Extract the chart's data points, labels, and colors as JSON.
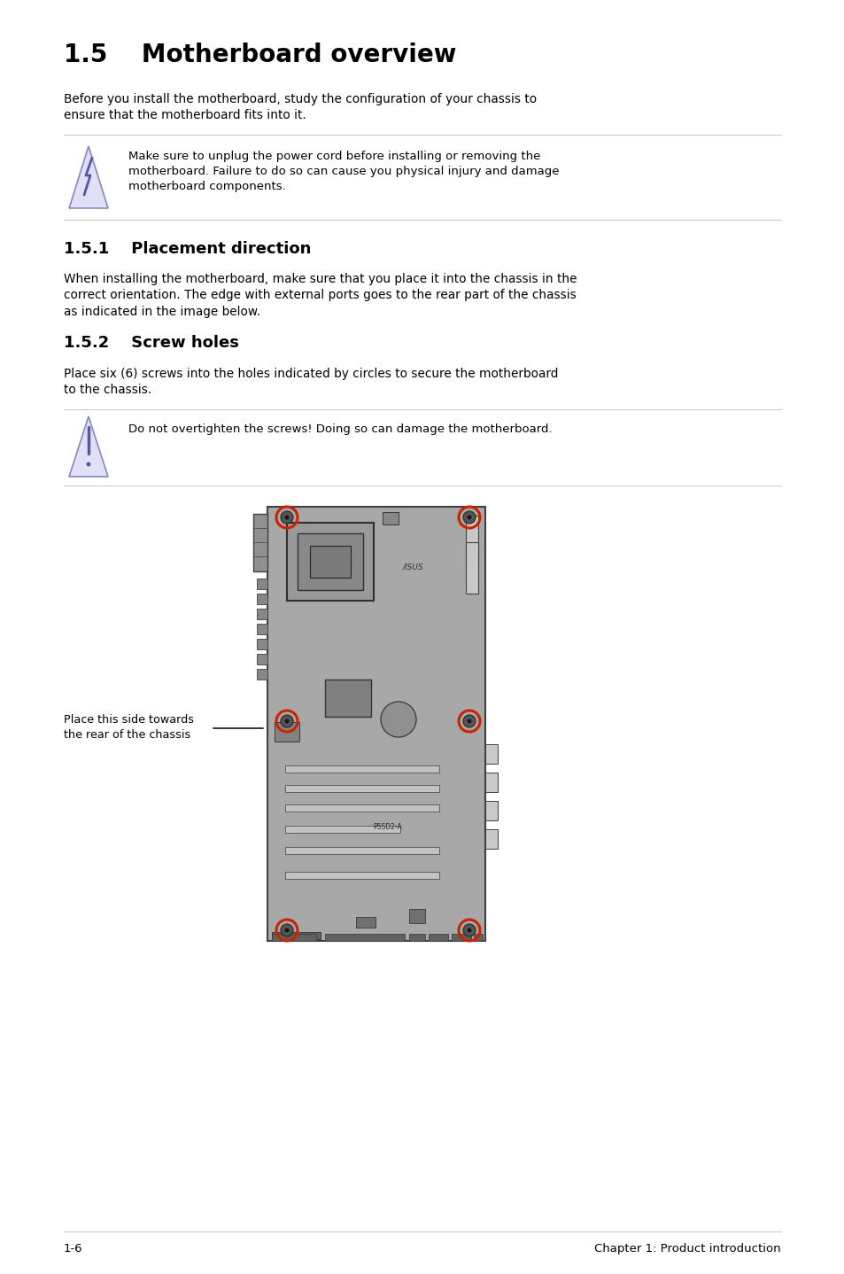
{
  "title": "1.5    Motherboard overview",
  "title_fontsize": 20,
  "body_fontsize": 9.8,
  "heading3_fontsize": 13,
  "background_color": "#ffffff",
  "text_color": "#000000",
  "line_color": "#cccccc",
  "para1": "Before you install the motherboard, study the configuration of your chassis to\nensure that the motherboard fits into it.",
  "warning1": "Make sure to unplug the power cord before installing or removing the\nmotherboard. Failure to do so can cause you physical injury and damage\nmotherboard components.",
  "section151": "1.5.1    Placement direction",
  "para2": "When installing the motherboard, make sure that you place it into the chassis in the\ncorrect orientation. The edge with external ports goes to the rear part of the chassis\nas indicated in the image below.",
  "section152": "1.5.2    Screw holes",
  "para3": "Place six (6) screws into the holes indicated by circles to secure the motherboard\nto the chassis.",
  "warning2": "Do not overtighten the screws! Doing so can damage the motherboard.",
  "label_text": "Place this side towards\nthe rear of the chassis",
  "footer_left": "1-6",
  "footer_right": "Chapter 1: Product introduction",
  "mb_color": "#a8a8a8",
  "mb_border_color": "#404040",
  "screw_circle_color": "#cc2200",
  "arrow_color": "#000000"
}
